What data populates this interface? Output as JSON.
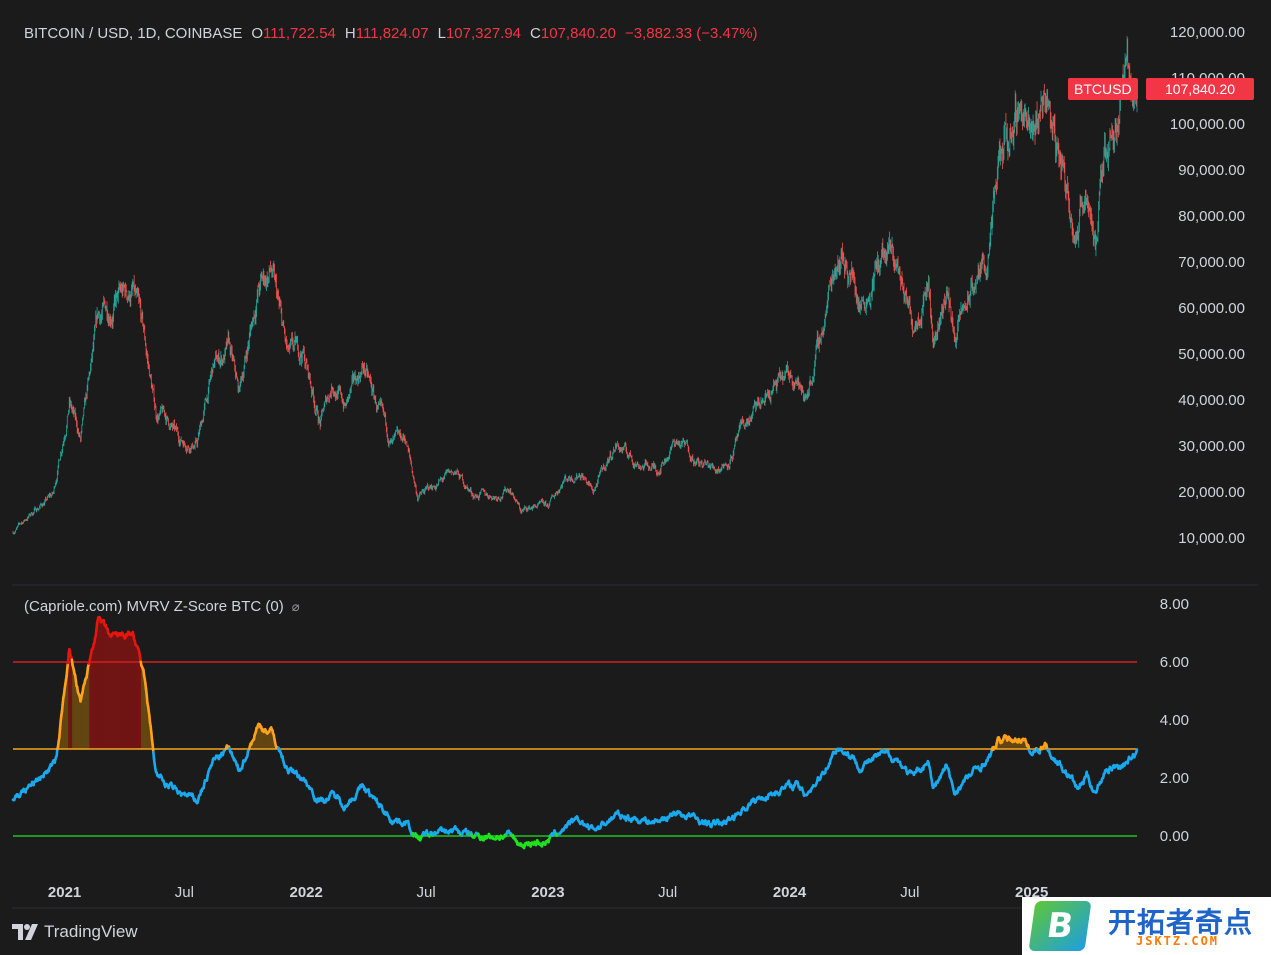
{
  "header": {
    "symbol": "BITCOIN / USD, 1D, COINBASE",
    "open_label": "O",
    "open_value": "111,722.54",
    "high_label": "H",
    "high_value": "111,824.07",
    "low_label": "L",
    "low_value": "107,327.94",
    "close_label": "C",
    "close_value": "107,840.20",
    "change": "−3,882.33 (−3.47%)"
  },
  "price_tags": {
    "name": "BTCUSD",
    "price": "107,840.20"
  },
  "indicator": {
    "title": "(Capriole.com) MVRV Z-Score BTC (0)",
    "hidden_icon": "⌀"
  },
  "footer": {
    "brand": "TradingView"
  },
  "watermark": {
    "title": "开拓者奇点",
    "sub": "JSKTZ.COM",
    "letter": "B"
  },
  "colors": {
    "background": "#1b1b1b",
    "up": "#26a69a",
    "down": "#ef5350",
    "red_line": "#d21f1f",
    "orange_line": "#f5a623",
    "green_line": "#22c222",
    "z_blue": "#1aa9ee",
    "z_orange": "#ffa21a",
    "z_red": "#e8150f",
    "z_green": "#1fe21f"
  },
  "chart_data": [
    {
      "type": "line",
      "title": "BITCOIN / USD, 1D, COINBASE",
      "x_ticks": [
        "2021",
        "Jul",
        "2022",
        "Jul",
        "2023",
        "Jul",
        "2024",
        "Jul",
        "2025"
      ],
      "y_ticks": [
        "120,000.00",
        "110,000.00",
        "100,000.00",
        "90,000.00",
        "80,000.00",
        "70,000.00",
        "60,000.00",
        "50,000.00",
        "40,000.00",
        "30,000.00",
        "20,000.00",
        "10,000.00"
      ],
      "ylim": [
        0,
        120000
      ],
      "series": [
        {
          "x": [
            "2020-10-15",
            "2020-11-15",
            "2020-12-15",
            "2021-01-08",
            "2021-01-25",
            "2021-02-21",
            "2021-03-13",
            "2021-04-14",
            "2021-05-01",
            "2021-05-19",
            "2021-06-01",
            "2021-06-22",
            "2021-07-20",
            "2021-08-14",
            "2021-09-06",
            "2021-09-21",
            "2021-10-20",
            "2021-11-09",
            "2021-12-04",
            "2021-12-27",
            "2022-01-22",
            "2022-02-10",
            "2022-03-01",
            "2022-03-28",
            "2022-04-15",
            "2022-05-10",
            "2022-05-31",
            "2022-06-18",
            "2022-07-15",
            "2022-08-14",
            "2022-09-10",
            "2022-10-15",
            "2022-11-05",
            "2022-11-21",
            "2022-12-15",
            "2023-01-01",
            "2023-01-25",
            "2023-02-20",
            "2023-03-10",
            "2023-04-14",
            "2023-05-15",
            "2023-06-15",
            "2023-07-13",
            "2023-08-05",
            "2023-08-17",
            "2023-09-11",
            "2023-10-01",
            "2023-10-24",
            "2023-12-05",
            "2024-01-11",
            "2024-01-23",
            "2024-02-15",
            "2024-03-14",
            "2024-04-01",
            "2024-04-17",
            "2024-05-20",
            "2024-06-10",
            "2024-07-05",
            "2024-07-29",
            "2024-08-05",
            "2024-08-25",
            "2024-09-06",
            "2024-10-01",
            "2024-10-29",
            "2024-11-13",
            "2024-12-17",
            "2025-01-01",
            "2025-01-21",
            "2025-02-03",
            "2025-02-27",
            "2025-03-12",
            "2025-03-25",
            "2025-04-08",
            "2025-04-22",
            "2025-05-22",
            "2025-06-09"
          ],
          "y": [
            11300,
            15800,
            19500,
            40000,
            31000,
            57000,
            61000,
            63500,
            53000,
            37000,
            36500,
            31500,
            30500,
            47000,
            51000,
            41000,
            64000,
            68000,
            49000,
            50500,
            35000,
            44000,
            38500,
            47500,
            39500,
            30000,
            31500,
            19000,
            21500,
            24300,
            19500,
            19200,
            21000,
            15800,
            17000,
            16600,
            23000,
            24500,
            20000,
            30500,
            26500,
            25000,
            31000,
            29000,
            26000,
            25100,
            27000,
            34000,
            42000,
            46000,
            39500,
            52000,
            73000,
            69000,
            61000,
            71000,
            69500,
            57000,
            68000,
            52000,
            64000,
            54000,
            63000,
            72000,
            90000,
            106000,
            94000,
            108000,
            98000,
            84000,
            78000,
            88000,
            75000,
            94000,
            111000,
            107840
          ]
        }
      ]
    },
    {
      "type": "line",
      "title": "(Capriole.com) MVRV Z-Score BTC (0)",
      "y_ticks": [
        "8.00",
        "6.00",
        "4.00",
        "2.00",
        "0.00"
      ],
      "ylim": [
        -0.5,
        8.5
      ],
      "thresholds": [
        6,
        3,
        0
      ],
      "series": [
        {
          "x": [
            "2020-10-15",
            "2020-11-20",
            "2020-12-20",
            "2021-01-08",
            "2021-01-25",
            "2021-02-21",
            "2021-03-13",
            "2021-04-14",
            "2021-05-01",
            "2021-05-19",
            "2021-06-01",
            "2021-06-22",
            "2021-07-20",
            "2021-08-14",
            "2021-09-06",
            "2021-09-21",
            "2021-10-20",
            "2021-11-09",
            "2021-12-04",
            "2021-12-27",
            "2022-01-22",
            "2022-02-10",
            "2022-03-01",
            "2022-03-28",
            "2022-04-15",
            "2022-05-10",
            "2022-05-31",
            "2022-06-18",
            "2022-07-15",
            "2022-08-14",
            "2022-09-10",
            "2022-10-15",
            "2022-11-05",
            "2022-11-21",
            "2022-12-15",
            "2023-01-01",
            "2023-01-25",
            "2023-02-20",
            "2023-03-10",
            "2023-04-14",
            "2023-05-15",
            "2023-06-15",
            "2023-07-13",
            "2023-08-05",
            "2023-08-17",
            "2023-09-11",
            "2023-10-01",
            "2023-10-24",
            "2023-12-05",
            "2024-01-11",
            "2024-01-23",
            "2024-02-15",
            "2024-03-14",
            "2024-04-01",
            "2024-04-17",
            "2024-05-20",
            "2024-06-10",
            "2024-07-05",
            "2024-07-29",
            "2024-08-05",
            "2024-08-25",
            "2024-09-06",
            "2024-10-01",
            "2024-10-29",
            "2024-11-13",
            "2024-12-17",
            "2025-01-01",
            "2025-01-21",
            "2025-02-03",
            "2025-02-27",
            "2025-03-12",
            "2025-03-25",
            "2025-04-08",
            "2025-04-22",
            "2025-05-22",
            "2025-06-09"
          ],
          "y": [
            1.3,
            1.9,
            2.6,
            6.5,
            4.5,
            7.5,
            6.8,
            7.0,
            5.5,
            2.2,
            1.8,
            1.5,
            1.2,
            2.6,
            3.0,
            2.2,
            3.8,
            3.6,
            2.3,
            2.0,
            1.2,
            1.4,
            1.1,
            1.7,
            1.2,
            0.6,
            0.5,
            -0.1,
            0.1,
            0.2,
            0.0,
            0.0,
            0.0,
            -0.3,
            -0.2,
            -0.2,
            0.3,
            0.5,
            0.2,
            0.7,
            0.6,
            0.5,
            0.8,
            0.7,
            0.5,
            0.4,
            0.5,
            1.0,
            1.5,
            1.8,
            1.4,
            2.0,
            3.1,
            2.8,
            2.4,
            2.8,
            2.7,
            2.0,
            2.6,
            1.6,
            2.4,
            1.5,
            2.1,
            2.7,
            3.3,
            3.4,
            2.8,
            3.2,
            2.7,
            2.1,
            1.6,
            2.1,
            1.5,
            2.3,
            2.5,
            2.9
          ]
        }
      ]
    }
  ]
}
